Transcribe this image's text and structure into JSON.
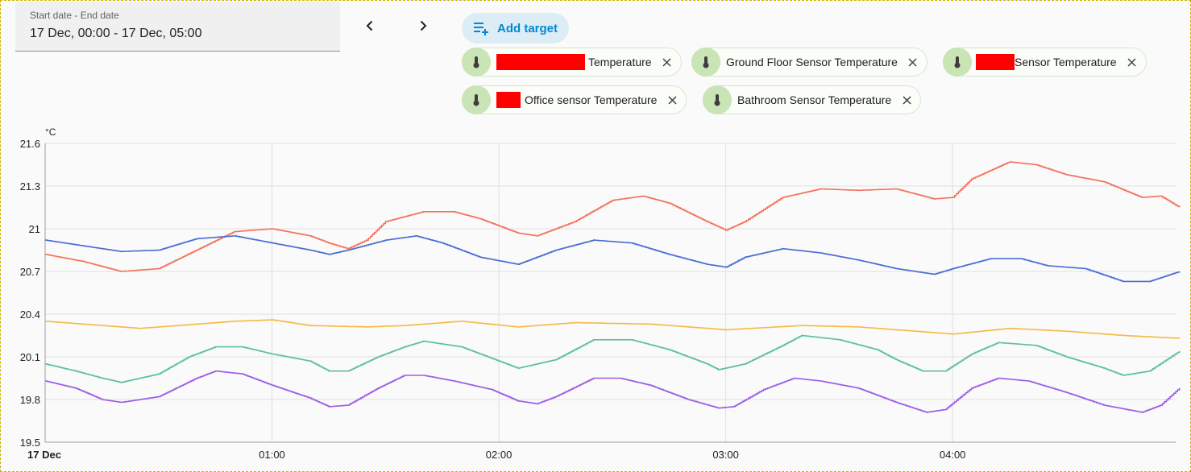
{
  "date_picker": {
    "label": "Start date - End date",
    "value": "17 Dec, 00:00 - 17 Dec, 05:00"
  },
  "nav": {
    "prev_icon": "chevron-left-icon",
    "next_icon": "chevron-right-icon"
  },
  "add_target": {
    "label": "Add target",
    "icon": "playlist-plus-icon"
  },
  "targets": [
    {
      "label": "Temperature",
      "icon": "thermometer-icon",
      "redacted": true
    },
    {
      "label": "Ground Floor Sensor Temperature",
      "icon": "thermometer-icon",
      "redacted": false
    },
    {
      "label": "Sensor Temperature",
      "icon": "thermometer-icon",
      "redacted": true
    },
    {
      "label": "Office sensor Temperature",
      "icon": "thermometer-icon",
      "redacted": true
    },
    {
      "label": "Bathroom Sensor Temperature",
      "icon": "thermometer-icon",
      "redacted": false
    }
  ],
  "colors": {
    "accent": "#0288d1",
    "chip_icon_bg": "#c9e4b5",
    "series_red": "#f4715a",
    "series_blue": "#4a6cd4",
    "series_yellow": "#f4b942",
    "series_green": "#5dbea0",
    "series_purple": "#9b5de5"
  },
  "chart_data": {
    "type": "line",
    "ylabel": "°C",
    "ylim": [
      19.5,
      21.6
    ],
    "yticks": [
      "19.5",
      "19.8",
      "20.1",
      "20.4",
      "20.7",
      "21",
      "21.3",
      "21.6"
    ],
    "xlim": [
      "00:00",
      "04:59"
    ],
    "xticks": [
      {
        "label": "17 Dec",
        "minute": 0,
        "bold": true
      },
      {
        "label": "01:00",
        "minute": 60
      },
      {
        "label": "02:00",
        "minute": 120
      },
      {
        "label": "03:00",
        "minute": 180
      },
      {
        "label": "04:00",
        "minute": 240
      }
    ],
    "grid": true,
    "series": [
      {
        "color": "#f4715a",
        "points": [
          [
            0,
            20.82
          ],
          [
            10,
            20.77
          ],
          [
            20,
            20.7
          ],
          [
            30,
            20.72
          ],
          [
            40,
            20.85
          ],
          [
            50,
            20.98
          ],
          [
            60,
            21.0
          ],
          [
            70,
            20.95
          ],
          [
            75,
            20.9
          ],
          [
            80,
            20.86
          ],
          [
            85,
            20.92
          ],
          [
            90,
            21.05
          ],
          [
            100,
            21.12
          ],
          [
            108,
            21.12
          ],
          [
            115,
            21.07
          ],
          [
            125,
            20.97
          ],
          [
            130,
            20.95
          ],
          [
            140,
            21.05
          ],
          [
            150,
            21.2
          ],
          [
            158,
            21.23
          ],
          [
            165,
            21.18
          ],
          [
            175,
            21.05
          ],
          [
            180,
            20.99
          ],
          [
            185,
            21.05
          ],
          [
            195,
            21.22
          ],
          [
            205,
            21.28
          ],
          [
            215,
            21.27
          ],
          [
            225,
            21.28
          ],
          [
            235,
            21.21
          ],
          [
            240,
            21.22
          ],
          [
            245,
            21.35
          ],
          [
            255,
            21.47
          ],
          [
            262,
            21.45
          ],
          [
            270,
            21.38
          ],
          [
            280,
            21.33
          ],
          [
            290,
            21.22
          ],
          [
            295,
            21.23
          ],
          [
            300,
            21.15
          ]
        ]
      },
      {
        "color": "#4a6cd4",
        "points": [
          [
            0,
            20.92
          ],
          [
            10,
            20.88
          ],
          [
            20,
            20.84
          ],
          [
            30,
            20.85
          ],
          [
            40,
            20.93
          ],
          [
            50,
            20.95
          ],
          [
            60,
            20.9
          ],
          [
            70,
            20.85
          ],
          [
            75,
            20.82
          ],
          [
            80,
            20.85
          ],
          [
            90,
            20.92
          ],
          [
            98,
            20.95
          ],
          [
            105,
            20.9
          ],
          [
            115,
            20.8
          ],
          [
            125,
            20.75
          ],
          [
            135,
            20.85
          ],
          [
            145,
            20.92
          ],
          [
            155,
            20.9
          ],
          [
            165,
            20.82
          ],
          [
            175,
            20.75
          ],
          [
            180,
            20.73
          ],
          [
            185,
            20.8
          ],
          [
            195,
            20.86
          ],
          [
            205,
            20.83
          ],
          [
            215,
            20.78
          ],
          [
            225,
            20.72
          ],
          [
            235,
            20.68
          ],
          [
            240,
            20.72
          ],
          [
            250,
            20.79
          ],
          [
            258,
            20.79
          ],
          [
            265,
            20.74
          ],
          [
            275,
            20.72
          ],
          [
            285,
            20.63
          ],
          [
            292,
            20.63
          ],
          [
            300,
            20.7
          ]
        ]
      },
      {
        "color": "#f4b942",
        "points": [
          [
            0,
            20.35
          ],
          [
            15,
            20.32
          ],
          [
            25,
            20.3
          ],
          [
            35,
            20.32
          ],
          [
            50,
            20.35
          ],
          [
            60,
            20.36
          ],
          [
            70,
            20.32
          ],
          [
            85,
            20.31
          ],
          [
            95,
            20.32
          ],
          [
            110,
            20.35
          ],
          [
            125,
            20.31
          ],
          [
            140,
            20.34
          ],
          [
            160,
            20.33
          ],
          [
            180,
            20.29
          ],
          [
            200,
            20.32
          ],
          [
            215,
            20.31
          ],
          [
            225,
            20.29
          ],
          [
            240,
            20.26
          ],
          [
            255,
            20.3
          ],
          [
            270,
            20.28
          ],
          [
            285,
            20.25
          ],
          [
            300,
            20.23
          ]
        ]
      },
      {
        "color": "#5dbea0",
        "points": [
          [
            0,
            20.05
          ],
          [
            8,
            20.0
          ],
          [
            15,
            19.95
          ],
          [
            20,
            19.92
          ],
          [
            30,
            19.98
          ],
          [
            38,
            20.1
          ],
          [
            45,
            20.17
          ],
          [
            52,
            20.17
          ],
          [
            60,
            20.12
          ],
          [
            70,
            20.07
          ],
          [
            75,
            20.0
          ],
          [
            80,
            20.0
          ],
          [
            88,
            20.1
          ],
          [
            95,
            20.17
          ],
          [
            100,
            20.21
          ],
          [
            110,
            20.17
          ],
          [
            120,
            20.07
          ],
          [
            125,
            20.02
          ],
          [
            135,
            20.08
          ],
          [
            140,
            20.15
          ],
          [
            145,
            20.22
          ],
          [
            155,
            20.22
          ],
          [
            165,
            20.15
          ],
          [
            175,
            20.05
          ],
          [
            178,
            20.01
          ],
          [
            185,
            20.05
          ],
          [
            195,
            20.18
          ],
          [
            200,
            20.25
          ],
          [
            210,
            20.22
          ],
          [
            220,
            20.15
          ],
          [
            225,
            20.08
          ],
          [
            232,
            20.0
          ],
          [
            238,
            20.0
          ],
          [
            245,
            20.12
          ],
          [
            252,
            20.2
          ],
          [
            262,
            20.18
          ],
          [
            270,
            20.1
          ],
          [
            280,
            20.02
          ],
          [
            285,
            19.97
          ],
          [
            292,
            20.0
          ],
          [
            300,
            20.14
          ]
        ]
      },
      {
        "color": "#9b5de5",
        "points": [
          [
            0,
            19.93
          ],
          [
            8,
            19.88
          ],
          [
            15,
            19.8
          ],
          [
            20,
            19.78
          ],
          [
            30,
            19.82
          ],
          [
            40,
            19.95
          ],
          [
            45,
            20.0
          ],
          [
            52,
            19.98
          ],
          [
            60,
            19.9
          ],
          [
            70,
            19.81
          ],
          [
            75,
            19.75
          ],
          [
            80,
            19.76
          ],
          [
            88,
            19.88
          ],
          [
            95,
            19.97
          ],
          [
            100,
            19.97
          ],
          [
            108,
            19.93
          ],
          [
            118,
            19.87
          ],
          [
            125,
            19.79
          ],
          [
            130,
            19.77
          ],
          [
            135,
            19.82
          ],
          [
            145,
            19.95
          ],
          [
            152,
            19.95
          ],
          [
            160,
            19.9
          ],
          [
            170,
            19.8
          ],
          [
            178,
            19.74
          ],
          [
            182,
            19.75
          ],
          [
            190,
            19.87
          ],
          [
            198,
            19.95
          ],
          [
            205,
            19.93
          ],
          [
            215,
            19.88
          ],
          [
            225,
            19.78
          ],
          [
            233,
            19.71
          ],
          [
            238,
            19.73
          ],
          [
            245,
            19.88
          ],
          [
            252,
            19.95
          ],
          [
            260,
            19.93
          ],
          [
            270,
            19.85
          ],
          [
            280,
            19.76
          ],
          [
            290,
            19.71
          ],
          [
            295,
            19.76
          ],
          [
            300,
            19.88
          ]
        ]
      }
    ]
  }
}
